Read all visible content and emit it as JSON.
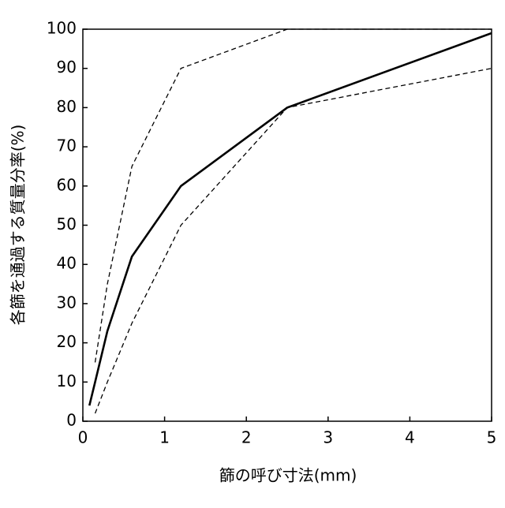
{
  "chart_data": {
    "type": "line",
    "xlabel": "篩の呼び寸法(mm)",
    "ylabel": "各篩を通過する質量分率(%)",
    "series": [
      {
        "color": "#000000",
        "style": "solid",
        "x": [
          0.08,
          0.15,
          0.3,
          0.6,
          1.2,
          2.5,
          5
        ],
        "values": [
          4,
          10,
          23,
          42,
          60,
          80,
          99
        ]
      },
      {
        "color": "#000000",
        "style": "dashed",
        "x": [
          0.15,
          0.3,
          0.6,
          1.2,
          2.5,
          5
        ],
        "values": [
          15,
          35,
          65,
          90,
          100,
          100
        ]
      },
      {
        "color": "#000000",
        "style": "dashed",
        "x": [
          0.15,
          0.3,
          0.6,
          1.2,
          2.5,
          5
        ],
        "values": [
          2,
          10,
          25,
          50,
          80,
          90
        ]
      }
    ],
    "xlim": [
      0,
      5
    ],
    "xticks": [
      0,
      1,
      2,
      3,
      4,
      5
    ],
    "ylim": [
      0,
      100
    ],
    "yticks": [
      0,
      10,
      20,
      30,
      40,
      50,
      60,
      70,
      80,
      90,
      100
    ]
  }
}
